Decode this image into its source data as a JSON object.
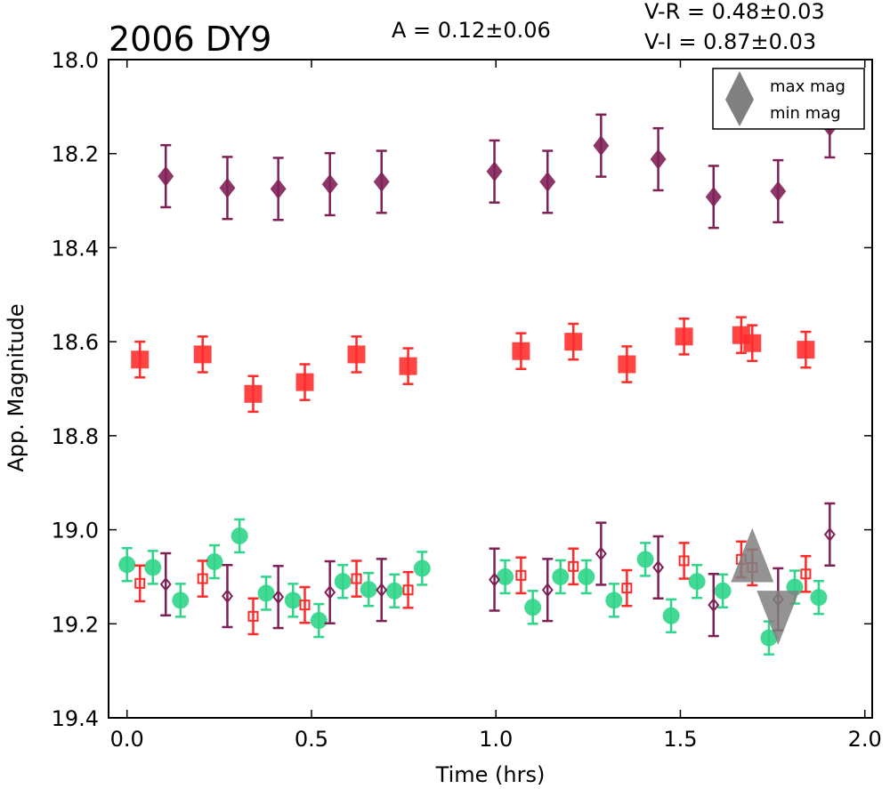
{
  "chart_data": {
    "type": "scatter",
    "title": "2006 DY9",
    "annotations": {
      "amplitude": "A  = 0.12±0.06",
      "v_minus_r": "V-R = 0.48±0.03",
      "v_minus_i": "V-I  = 0.87±0.03"
    },
    "xlabel": "Time (hrs)",
    "ylabel": "App. Magnitude",
    "xlim": [
      -0.05,
      2.02
    ],
    "ylim": [
      19.4,
      18.0
    ],
    "y_inverted": true,
    "xticks": [
      "0.0",
      "0.5",
      "1.0",
      "1.5",
      "2.0"
    ],
    "yticks": [
      "18.0",
      "18.2",
      "18.4",
      "18.6",
      "18.8",
      "19.0",
      "19.2",
      "19.4"
    ],
    "grid": false,
    "legend": {
      "position": "top-right",
      "entries": [
        {
          "label": "max mag",
          "marker": "triangle-up",
          "color": "#808080"
        },
        {
          "label": "min mag",
          "marker": "triangle-down",
          "color": "#808080"
        }
      ]
    },
    "series": [
      {
        "marker": "diamond-filled",
        "color": "#7f2157",
        "error": 0.066,
        "points": [
          [
            0.105,
            18.248
          ],
          [
            0.272,
            18.273
          ],
          [
            0.41,
            18.275
          ],
          [
            0.55,
            18.265
          ],
          [
            0.69,
            18.26
          ],
          [
            0.996,
            18.238
          ],
          [
            1.14,
            18.26
          ],
          [
            1.285,
            18.183
          ],
          [
            1.44,
            18.212
          ],
          [
            1.59,
            18.292
          ],
          [
            1.765,
            18.28
          ],
          [
            1.905,
            18.142
          ]
        ]
      },
      {
        "marker": "square-filled",
        "color": "#ff2a2a",
        "error": 0.038,
        "points": [
          [
            0.035,
            18.638
          ],
          [
            0.205,
            18.627
          ],
          [
            0.342,
            18.711
          ],
          [
            0.482,
            18.686
          ],
          [
            0.622,
            18.627
          ],
          [
            0.762,
            18.652
          ],
          [
            1.068,
            18.62
          ],
          [
            1.21,
            18.6
          ],
          [
            1.355,
            18.648
          ],
          [
            1.51,
            18.589
          ],
          [
            1.665,
            18.586
          ],
          [
            1.695,
            18.603
          ],
          [
            1.84,
            18.617
          ]
        ]
      },
      {
        "marker": "circle-filled",
        "color": "#2fd589",
        "error": 0.035,
        "points": [
          [
            0.0,
            19.074
          ],
          [
            0.07,
            19.08
          ],
          [
            0.145,
            19.15
          ],
          [
            0.237,
            19.068
          ],
          [
            0.305,
            19.013
          ],
          [
            0.377,
            19.135
          ],
          [
            0.45,
            19.15
          ],
          [
            0.52,
            19.193
          ],
          [
            0.585,
            19.11
          ],
          [
            0.655,
            19.127
          ],
          [
            0.725,
            19.13
          ],
          [
            0.8,
            19.082
          ],
          [
            1.025,
            19.1
          ],
          [
            1.1,
            19.165
          ],
          [
            1.175,
            19.1
          ],
          [
            1.245,
            19.1
          ],
          [
            1.32,
            19.15
          ],
          [
            1.405,
            19.063
          ],
          [
            1.475,
            19.183
          ],
          [
            1.545,
            19.11
          ],
          [
            1.615,
            19.13
          ],
          [
            1.74,
            19.23
          ],
          [
            1.81,
            19.122
          ],
          [
            1.875,
            19.144
          ]
        ]
      },
      {
        "marker": "square-open",
        "color": "#ff2a2a",
        "error": 0.038,
        "points": [
          [
            0.035,
            19.114
          ],
          [
            0.205,
            19.104
          ],
          [
            0.342,
            19.184
          ],
          [
            0.482,
            19.16
          ],
          [
            0.622,
            19.104
          ],
          [
            0.762,
            19.128
          ],
          [
            1.068,
            19.097
          ],
          [
            1.21,
            19.078
          ],
          [
            1.355,
            19.124
          ],
          [
            1.51,
            19.066
          ],
          [
            1.665,
            19.063
          ],
          [
            1.695,
            19.08
          ],
          [
            1.84,
            19.094
          ]
        ]
      },
      {
        "marker": "diamond-open",
        "color": "#7f2157",
        "error": 0.066,
        "points": [
          [
            0.105,
            19.116
          ],
          [
            0.272,
            19.141
          ],
          [
            0.41,
            19.143
          ],
          [
            0.55,
            19.133
          ],
          [
            0.69,
            19.128
          ],
          [
            0.996,
            19.106
          ],
          [
            1.14,
            19.128
          ],
          [
            1.285,
            19.051
          ],
          [
            1.44,
            19.08
          ],
          [
            1.59,
            19.16
          ],
          [
            1.765,
            19.148
          ],
          [
            1.905,
            19.01
          ]
        ]
      },
      {
        "marker": "triangle-up-large",
        "color": "#808080",
        "error": 0,
        "points": [
          [
            1.695,
            19.066
          ]
        ]
      },
      {
        "marker": "triangle-down-large",
        "color": "#808080",
        "error": 0,
        "points": [
          [
            1.765,
            19.175
          ]
        ]
      }
    ]
  }
}
